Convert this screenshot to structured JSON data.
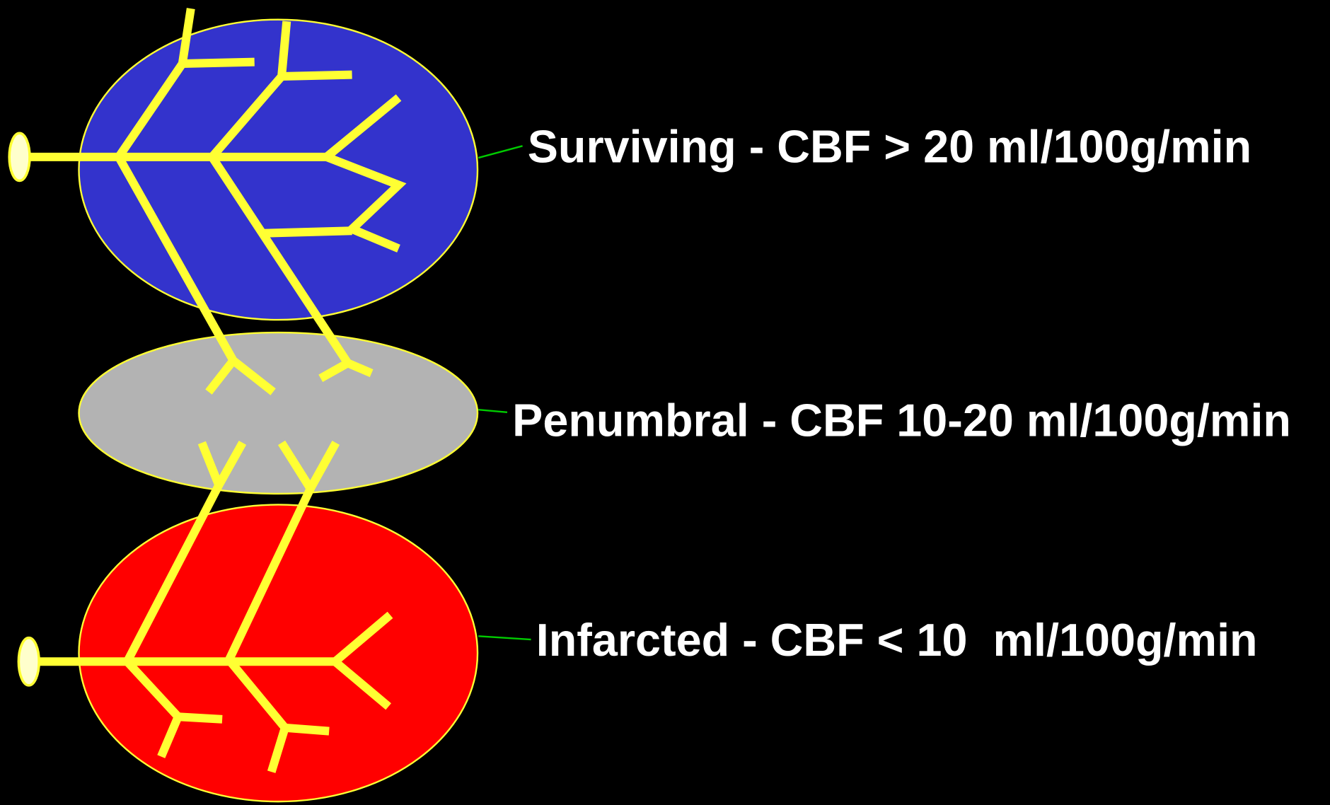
{
  "zones": [
    {
      "label": "Surviving - CBF > 20 ml/100g/min"
    },
    {
      "label": "Penumbral - CBF 10-20 ml/100g/min"
    },
    {
      "label": "Infarcted - CBF < 10  ml/100g/min"
    }
  ]
}
